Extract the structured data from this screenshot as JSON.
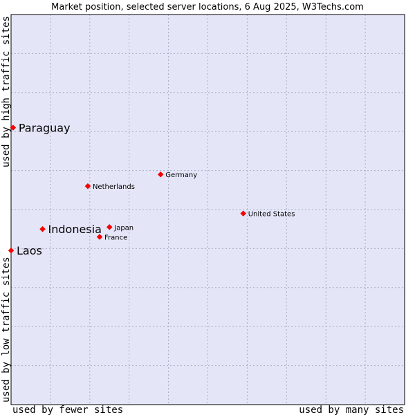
{
  "chart_data": {
    "type": "scatter",
    "title": "Market position, selected server locations, 6 Aug 2025, W3Techs.com",
    "xlabel_left": "used by fewer sites",
    "xlabel_right": "used by many sites",
    "ylabel_bottom": "used by low traffic sites",
    "ylabel_top": "used by high traffic sites",
    "xlim": [
      0,
      10
    ],
    "ylim": [
      0,
      10
    ],
    "grid": true,
    "colors": {
      "plot_bg": "#e4e6f8",
      "grid": "#a9acc4",
      "marker": "#ff0000",
      "frame": "#000000"
    },
    "points": [
      {
        "name": "Paraguay",
        "x": 0.05,
        "y": 7.1,
        "highlight": true
      },
      {
        "name": "Germany",
        "x": 3.8,
        "y": 5.9,
        "highlight": false
      },
      {
        "name": "Netherlands",
        "x": 1.95,
        "y": 5.6,
        "highlight": false
      },
      {
        "name": "United States",
        "x": 5.9,
        "y": 4.9,
        "highlight": false
      },
      {
        "name": "Indonesia",
        "x": 0.8,
        "y": 4.5,
        "highlight": true
      },
      {
        "name": "Japan",
        "x": 2.5,
        "y": 4.55,
        "highlight": false
      },
      {
        "name": "France",
        "x": 2.25,
        "y": 4.3,
        "highlight": false
      },
      {
        "name": "Laos",
        "x": 0.0,
        "y": 3.95,
        "highlight": true
      }
    ]
  }
}
